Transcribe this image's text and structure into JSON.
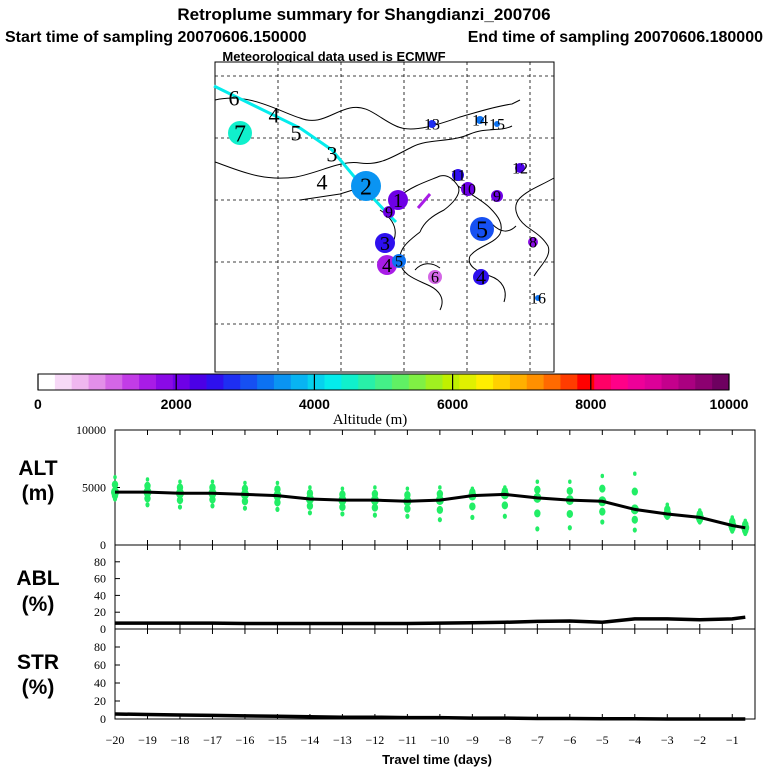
{
  "header": {
    "title": "Retroplume summary for Shangdianzi_200706",
    "start_label": "Start time of sampling 20070606.150000",
    "end_label": "End time of sampling 20070606.180000",
    "met_label": "Meteorological data used is ECMWF"
  },
  "colorbar": {
    "ticks": [
      "0",
      "2000",
      "4000",
      "6000",
      "8000",
      "10000"
    ],
    "tick_values": [
      0,
      2000,
      4000,
      6000,
      8000,
      10000
    ],
    "label": "Altitude (m)",
    "colors": [
      "#ffffff",
      "#f7d9f7",
      "#efb7ef",
      "#e38fe9",
      "#d466e6",
      "#c23ce6",
      "#a81ce6",
      "#8a0ae6",
      "#6e00e6",
      "#4b00e6",
      "#2e10ee",
      "#1e2ef2",
      "#1650f2",
      "#0c72f2",
      "#0a94f2",
      "#08b4f2",
      "#06d2ee",
      "#04ecec",
      "#10f0cc",
      "#28f0a8",
      "#44f088",
      "#60f064",
      "#80f044",
      "#a0f020",
      "#c0f000",
      "#e0f000",
      "#ffee00",
      "#ffd000",
      "#ffb000",
      "#ff9000",
      "#ff6a00",
      "#ff3c00",
      "#ff0000",
      "#ff0066",
      "#ff0088",
      "#ee0099",
      "#dd0099",
      "#c4008c",
      "#aa0080",
      "#8c0070",
      "#6e0060"
    ]
  },
  "map": {
    "plume_points": [
      {
        "label": "6",
        "alt": 3400,
        "size": 0
      },
      {
        "label": "7",
        "alt": 4600,
        "size": 12
      },
      {
        "label": "4",
        "alt": 4500,
        "size": 0
      },
      {
        "label": "5",
        "alt": 4500,
        "size": 0
      },
      {
        "label": "3",
        "alt": 4400,
        "size": 0
      },
      {
        "label": "4",
        "alt": 4300,
        "size": 0
      },
      {
        "label": "2",
        "alt": 3500,
        "size": 15
      },
      {
        "label": "1",
        "alt": 2000,
        "size": 10
      },
      {
        "label": "3",
        "alt": 2500,
        "size": 10
      },
      {
        "label": "4",
        "alt": 1600,
        "size": 10
      },
      {
        "label": "5",
        "alt": 3200,
        "size": 7
      },
      {
        "label": "5",
        "alt": 3000,
        "size": 12
      },
      {
        "label": "4",
        "alt": 2600,
        "size": 8
      },
      {
        "label": "6",
        "alt": 1000,
        "size": 7
      },
      {
        "label": "8",
        "alt": 1800,
        "size": 5
      },
      {
        "label": "9",
        "alt": 1900,
        "size": 6
      },
      {
        "label": "10",
        "alt": 2100,
        "size": 7
      },
      {
        "label": "11",
        "alt": 2400,
        "size": 6
      },
      {
        "label": "12",
        "alt": 2200,
        "size": 5
      },
      {
        "label": "13",
        "alt": 2800,
        "size": 4
      },
      {
        "label": "14",
        "alt": 3300,
        "size": 4
      },
      {
        "label": "15",
        "alt": 3300,
        "size": 3
      },
      {
        "label": "16",
        "alt": 3200,
        "size": 3
      },
      {
        "label": "9",
        "alt": 2100,
        "size": 6
      }
    ]
  },
  "chart_data": [
    {
      "type": "scatter",
      "panel": "ALT",
      "label_top": "ALT",
      "label_bottom": "(m)",
      "ylabel": "ALT (m)",
      "ylim": [
        0,
        10000
      ],
      "yticks": [
        "10000",
        "5000",
        "0"
      ],
      "ytick_values": [
        10000,
        5000,
        0
      ],
      "median_line": {
        "x": [
          -20,
          -19,
          -18,
          -17,
          -16,
          -15,
          -14,
          -13,
          -12,
          -11,
          -10,
          -9,
          -8,
          -7,
          -6,
          -5,
          -4,
          -3,
          -2,
          -1,
          -0.6
        ],
        "y": [
          4600,
          4600,
          4500,
          4500,
          4400,
          4300,
          4000,
          3900,
          3900,
          3800,
          3900,
          4300,
          4400,
          4100,
          3900,
          3800,
          3100,
          2700,
          2400,
          1700,
          1500
        ]
      },
      "spread_points": {
        "x": [
          -20,
          -19,
          -18,
          -17,
          -16,
          -15,
          -14,
          -13,
          -12,
          -11,
          -10,
          -9,
          -8,
          -7,
          -6,
          -5,
          -4,
          -3,
          -2,
          -1,
          -0.6
        ],
        "y_high": [
          5900,
          5700,
          5500,
          5500,
          5400,
          5400,
          5000,
          4900,
          5000,
          4900,
          5000,
          4900,
          5000,
          5500,
          5500,
          6000,
          6200,
          3500,
          3000,
          2400,
          2100
        ],
        "y_low": [
          4000,
          3500,
          3300,
          3400,
          3200,
          3100,
          2800,
          2700,
          2600,
          2500,
          2200,
          2400,
          2500,
          1400,
          1500,
          2000,
          1300,
          2400,
          2000,
          1200,
          1000
        ]
      }
    },
    {
      "type": "line",
      "panel": "ABL",
      "label_top": "ABL",
      "label_bottom": "(%)",
      "ylabel": "ABL (%)",
      "ylim": [
        0,
        100
      ],
      "yticks": [
        "80",
        "60",
        "40",
        "20",
        "0"
      ],
      "ytick_values": [
        80,
        60,
        40,
        20,
        0
      ],
      "x": [
        -20,
        -19,
        -18,
        -17,
        -16,
        -15,
        -14,
        -13,
        -12,
        -11,
        -10,
        -9,
        -8,
        -7,
        -6,
        -5,
        -4,
        -3,
        -2,
        -1,
        -0.6
      ],
      "y": [
        7,
        7,
        7,
        7,
        6.5,
        6.5,
        6.5,
        6.5,
        6.5,
        6.5,
        7,
        7.5,
        8,
        9,
        9.5,
        8,
        12,
        12,
        11,
        12,
        14
      ]
    },
    {
      "type": "line",
      "panel": "STR",
      "label_top": "STR",
      "label_bottom": "(%)",
      "ylabel": "STR (%)",
      "ylim": [
        0,
        100
      ],
      "yticks": [
        "80",
        "60",
        "40",
        "20",
        "0"
      ],
      "ytick_values": [
        80,
        60,
        40,
        20,
        0
      ],
      "x": [
        -20,
        -19,
        -18,
        -17,
        -16,
        -15,
        -14,
        -13,
        -12,
        -11,
        -10,
        -9,
        -8,
        -7,
        -6,
        -5,
        -4,
        -3,
        -2,
        -1,
        -0.6
      ],
      "y": [
        5.5,
        5,
        4.5,
        4,
        3.5,
        3,
        2.5,
        2,
        2,
        1.5,
        1.5,
        1,
        1,
        0.5,
        0.5,
        0.3,
        0.2,
        0,
        0,
        0,
        0
      ]
    }
  ],
  "xaxis": {
    "label": "Travel time (days)",
    "ticks": [
      "-20",
      "-19",
      "-18",
      "-17",
      "-16",
      "-15",
      "-14",
      "-13",
      "-12",
      "-11",
      "-10",
      "-9",
      "-8",
      "-7",
      "-6",
      "-5",
      "-4",
      "-3",
      "-2",
      "-1"
    ],
    "tick_values": [
      -20,
      -19,
      -18,
      -17,
      -16,
      -15,
      -14,
      -13,
      -12,
      -11,
      -10,
      -9,
      -8,
      -7,
      -6,
      -5,
      -4,
      -3,
      -2,
      -1
    ],
    "xlim": [
      -20,
      -0.3
    ]
  }
}
